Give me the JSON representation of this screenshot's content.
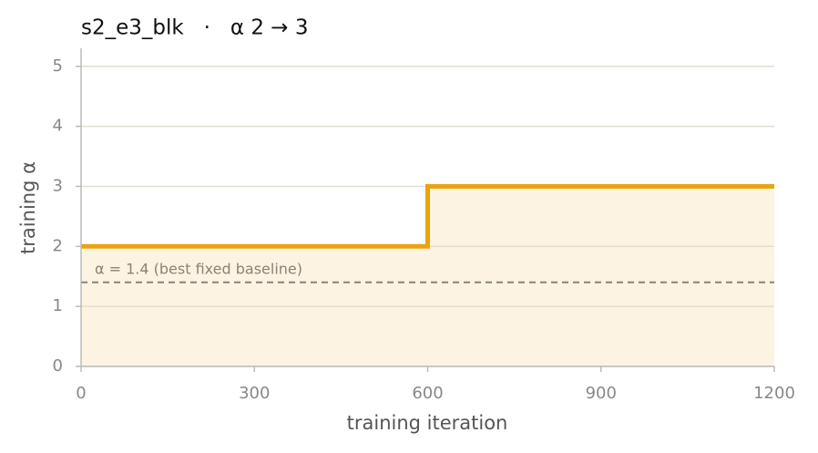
{
  "chart_data": {
    "type": "line",
    "title": "s2_e3_blk   ·   α 2 → 3",
    "x_label": "training iteration",
    "y_label": "training α",
    "x": [
      0,
      600,
      600,
      1200
    ],
    "series": [
      {
        "name": "training α",
        "color": "#eba30e",
        "fill": "#fdf3e3",
        "values": [
          2,
          2,
          3,
          3
        ]
      }
    ],
    "baseline": {
      "value": 1.4,
      "label": "α = 1.4 (best fixed baseline)",
      "color": "#8a8276"
    },
    "xlim": [
      0,
      1200
    ],
    "xticks": [
      0,
      300,
      600,
      900,
      1200
    ],
    "ylim": [
      0,
      5.3
    ],
    "yticks": [
      0,
      1,
      2,
      3,
      4,
      5
    ],
    "grid": true
  }
}
